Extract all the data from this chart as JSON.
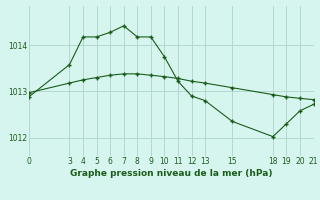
{
  "title": "Graphe pression niveau de la mer (hPa)",
  "bg_color": "#d6f5ef",
  "grid_color": "#aed4cc",
  "line_color": "#1a5c1a",
  "xlim": [
    0,
    21
  ],
  "ylim": [
    1011.6,
    1014.85
  ],
  "yticks": [
    1012,
    1013,
    1014
  ],
  "xticks": [
    0,
    3,
    4,
    5,
    6,
    7,
    8,
    9,
    10,
    11,
    12,
    13,
    15,
    18,
    19,
    20,
    21
  ],
  "series1_x": [
    0,
    3,
    4,
    5,
    6,
    7,
    8,
    9,
    10,
    11,
    12,
    13,
    15,
    18,
    19,
    20,
    21
  ],
  "series1_y": [
    1012.88,
    1013.58,
    1014.18,
    1014.18,
    1014.28,
    1014.42,
    1014.18,
    1014.18,
    1013.75,
    1013.22,
    1012.9,
    1012.8,
    1012.35,
    1012.02,
    1012.3,
    1012.58,
    1012.72
  ],
  "series2_x": [
    0,
    3,
    4,
    5,
    6,
    7,
    8,
    9,
    10,
    11,
    12,
    13,
    15,
    18,
    19,
    20,
    21
  ],
  "series2_y": [
    1012.97,
    1013.18,
    1013.25,
    1013.3,
    1013.35,
    1013.38,
    1013.38,
    1013.35,
    1013.32,
    1013.28,
    1013.22,
    1013.18,
    1013.08,
    1012.93,
    1012.88,
    1012.85,
    1012.82
  ],
  "tick_fontsize": 5.5,
  "label_fontsize": 6.5
}
